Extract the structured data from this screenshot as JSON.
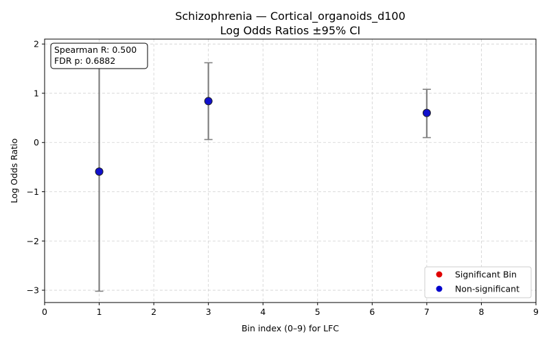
{
  "chart_data": {
    "type": "scatter",
    "title_line1": "Schizophrenia — Cortical_organoids_d100",
    "title_line2": "Log Odds Ratios ±95% CI",
    "xlabel": "Bin index (0–9) for LFC",
    "ylabel": "Log Odds Ratio",
    "xlim": [
      0,
      9
    ],
    "ylim": [
      -3.25,
      2.1
    ],
    "xticks": [
      0,
      1,
      2,
      3,
      4,
      5,
      6,
      7,
      8,
      9
    ],
    "xtick_labels": [
      "0",
      "1",
      "2",
      "3",
      "4",
      "5",
      "6",
      "7",
      "8",
      "9"
    ],
    "yticks": [
      -3,
      -2,
      -1,
      0,
      1,
      2
    ],
    "ytick_labels": [
      "−3",
      "−2",
      "−1",
      "0",
      "1",
      "2"
    ],
    "grid": true,
    "points": [
      {
        "x": 1,
        "y": -0.59,
        "ci_low": -3.02,
        "ci_high": 1.85,
        "significant": false
      },
      {
        "x": 3,
        "y": 0.84,
        "ci_low": 0.06,
        "ci_high": 1.62,
        "significant": false
      },
      {
        "x": 7,
        "y": 0.6,
        "ci_low": 0.1,
        "ci_high": 1.08,
        "significant": false
      }
    ],
    "legend": {
      "placement": "lower-right",
      "entries": [
        {
          "label": "Significant Bin",
          "color": "#e00000"
        },
        {
          "label": "Non-significant",
          "color": "#0000cc"
        }
      ]
    },
    "stats": {
      "line1": "Spearman R: 0.500",
      "line2": "FDR p: 0.6882"
    },
    "colors": {
      "nonsignificant": "#1010cc",
      "significant": "#e00000",
      "errorbar": "#808080",
      "grid": "#d0d0d0"
    }
  }
}
